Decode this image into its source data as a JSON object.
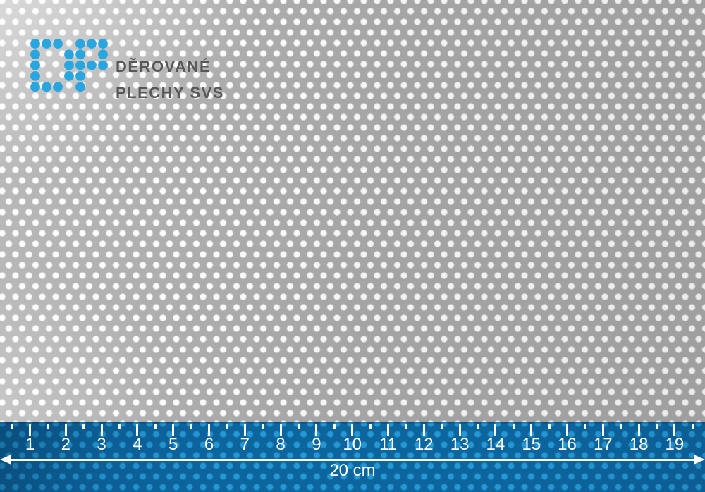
{
  "brand": {
    "logo_icon": "dp-dot-logo",
    "logo_color": "#29a5df",
    "logo_matrix": [
      "1110111",
      "1001101",
      "1001111",
      "1001100",
      "1110100"
    ],
    "line1": "DĚROVANÉ",
    "line2": "PLECHY SVS",
    "text_color": "#57585a"
  },
  "sheet": {
    "material": "perforated-metal-round-holes-staggered",
    "metal_color": "#a9a9a9",
    "hole_color": "#fdfdfd"
  },
  "ruler": {
    "numbers": [
      "1",
      "2",
      "3",
      "4",
      "5",
      "6",
      "7",
      "8",
      "9",
      "10",
      "11",
      "12",
      "13",
      "14",
      "15",
      "16",
      "17",
      "18",
      "19"
    ],
    "label": "20 cm",
    "band_color": "#0d659e",
    "dot_color": "#2599d6",
    "ink_color": "#ffffff"
  }
}
